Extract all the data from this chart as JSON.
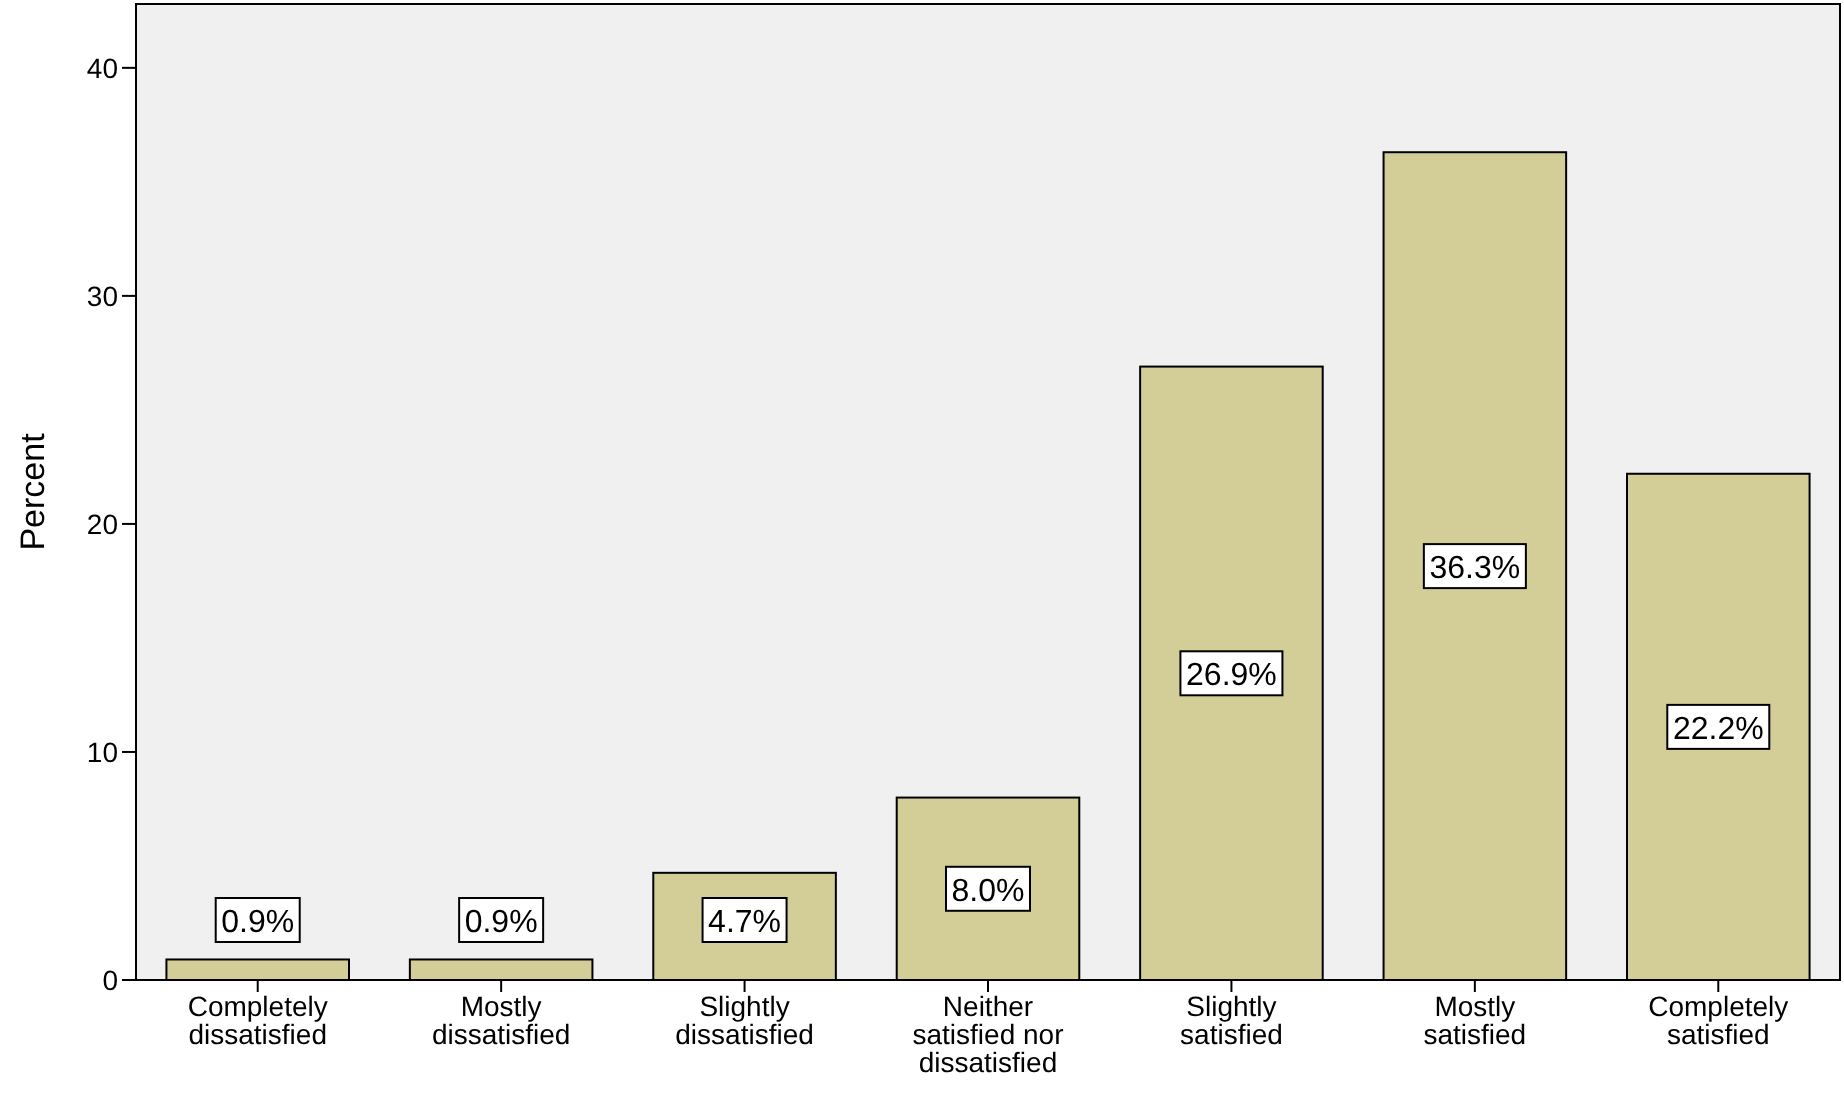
{
  "chart_data": {
    "type": "bar",
    "ylabel": "Percent",
    "categories": [
      "Completely dissatisfied",
      "Mostly dissatisfied",
      "Slightly dissatisfied",
      "Neither satisfied nor dissatisfied",
      "Slightly satisfied",
      "Mostly satisfied",
      "Completely satisfied"
    ],
    "values": [
      0.9,
      0.9,
      4.7,
      8.0,
      26.9,
      36.3,
      22.2
    ],
    "value_labels": [
      "0.9%",
      "0.9%",
      "4.7%",
      "8.0%",
      "26.9%",
      "36.3%",
      "22.2%"
    ],
    "color": "#d3ce98",
    "ylim": [
      0,
      42.8
    ],
    "yticks": [
      0,
      10,
      20,
      30,
      40
    ],
    "grid": false
  }
}
